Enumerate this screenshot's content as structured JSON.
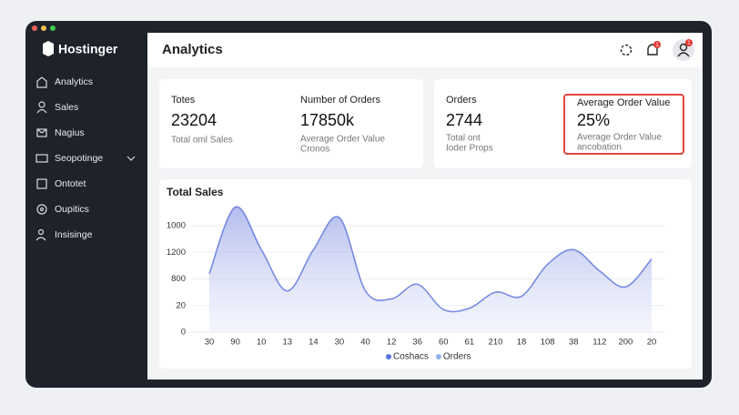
{
  "sidebar": {
    "brand": "Hostinger",
    "items": [
      "Analytics",
      "Sales",
      "Nagius",
      "Seopotinge",
      "Ontotet",
      "Oupitics",
      "Insisinge"
    ]
  },
  "header": {
    "title": "Analytics",
    "badges": [
      "1",
      "1"
    ]
  },
  "cards": [
    {
      "label": "Totes",
      "value": "23204",
      "notes": [
        "Total oml Sales"
      ]
    },
    {
      "label": "Number of Orders",
      "value": "17850k",
      "notes": [
        "Average Order Value",
        "Cronos"
      ]
    },
    {
      "label": "Orders",
      "value": "2744",
      "notes": [
        "Total ont",
        "Ioder Props"
      ]
    },
    {
      "label": "Average Order Value",
      "value": "25%",
      "notes": [
        "Average Order Value",
        "ancobation"
      ]
    }
  ],
  "chart_data": {
    "type": "area",
    "title": "Total Sales",
    "categories": [
      "30",
      "90",
      "10",
      "13",
      "14",
      "30",
      "40",
      "12",
      "36",
      "60",
      "61",
      "210",
      "18",
      "108",
      "38",
      "112",
      "200",
      "20"
    ],
    "series": [
      {
        "name": "Coshacs",
        "color": "#5a72dc",
        "values": [
          2.2,
          4.7,
          3.1,
          1.55,
          3.1,
          4.3,
          1.55,
          1.25,
          1.8,
          0.85,
          0.9,
          1.5,
          1.35,
          2.55,
          3.1,
          2.3,
          1.7,
          2.75
        ]
      },
      {
        "name": "Orders",
        "color": "#8fb3e8"
      }
    ],
    "ylim": [
      0,
      4
    ],
    "yticks": [
      {
        "value": 0,
        "label": "0"
      },
      {
        "value": 1,
        "label": "20"
      },
      {
        "value": 2,
        "label": "800"
      },
      {
        "value": 3,
        "label": "1200"
      },
      {
        "value": 4,
        "label": "1000"
      }
    ],
    "grid": true
  }
}
